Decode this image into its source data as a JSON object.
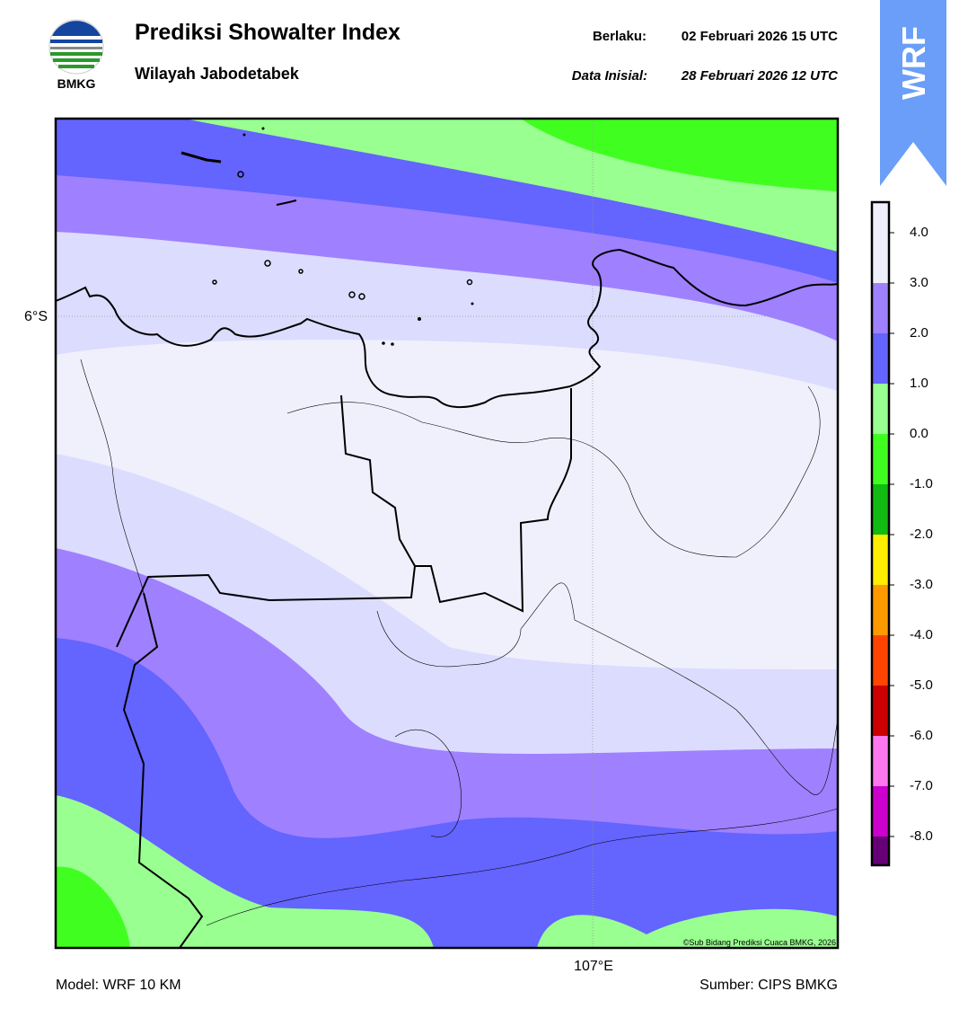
{
  "header": {
    "logo_text": "BMKG",
    "title": "Prediksi Showalter Index",
    "subtitle": "Wilayah Jabodetabek",
    "valid_label": "Berlaku:",
    "valid_value": "02 Februari 2026 15 UTC",
    "init_label": "Data Inisial:",
    "init_value": "28 Februari 2026 12 UTC",
    "badge": "WRF"
  },
  "map": {
    "lat_label": "6°S",
    "lon_label": "107°E",
    "credit": "©Sub Bidang Prediksi Cuaca BMKG, 2026"
  },
  "colorbar": {
    "ticks": [
      {
        "value": 4,
        "label": "4.0"
      },
      {
        "value": 3,
        "label": "3.0"
      },
      {
        "value": 2,
        "label": "2.0"
      },
      {
        "value": 1,
        "label": "1.0"
      },
      {
        "value": 0,
        "label": "0.0"
      },
      {
        "value": -1,
        "label": "-1.0"
      },
      {
        "value": -2,
        "label": "-2.0"
      },
      {
        "value": -3,
        "label": "-3.0"
      },
      {
        "value": -4,
        "label": "-4.0"
      },
      {
        "value": -5,
        "label": "-5.0"
      },
      {
        "value": -6,
        "label": "-6.0"
      },
      {
        "value": -7,
        "label": "-7.0"
      },
      {
        "value": -8,
        "label": "-8.0"
      }
    ],
    "colors": [
      "#f0f0fd",
      "#9f80ff",
      "#6464ff",
      "#99ff90",
      "#40ff20",
      "#11bb11",
      "#ffee00",
      "#ff9900",
      "#ff4400",
      "#cc0000",
      "#ff77ee",
      "#cc00cc",
      "#660077"
    ]
  },
  "footer": {
    "model": "Model: WRF 10 KM",
    "source": "Sumber: CIPS BMKG"
  }
}
